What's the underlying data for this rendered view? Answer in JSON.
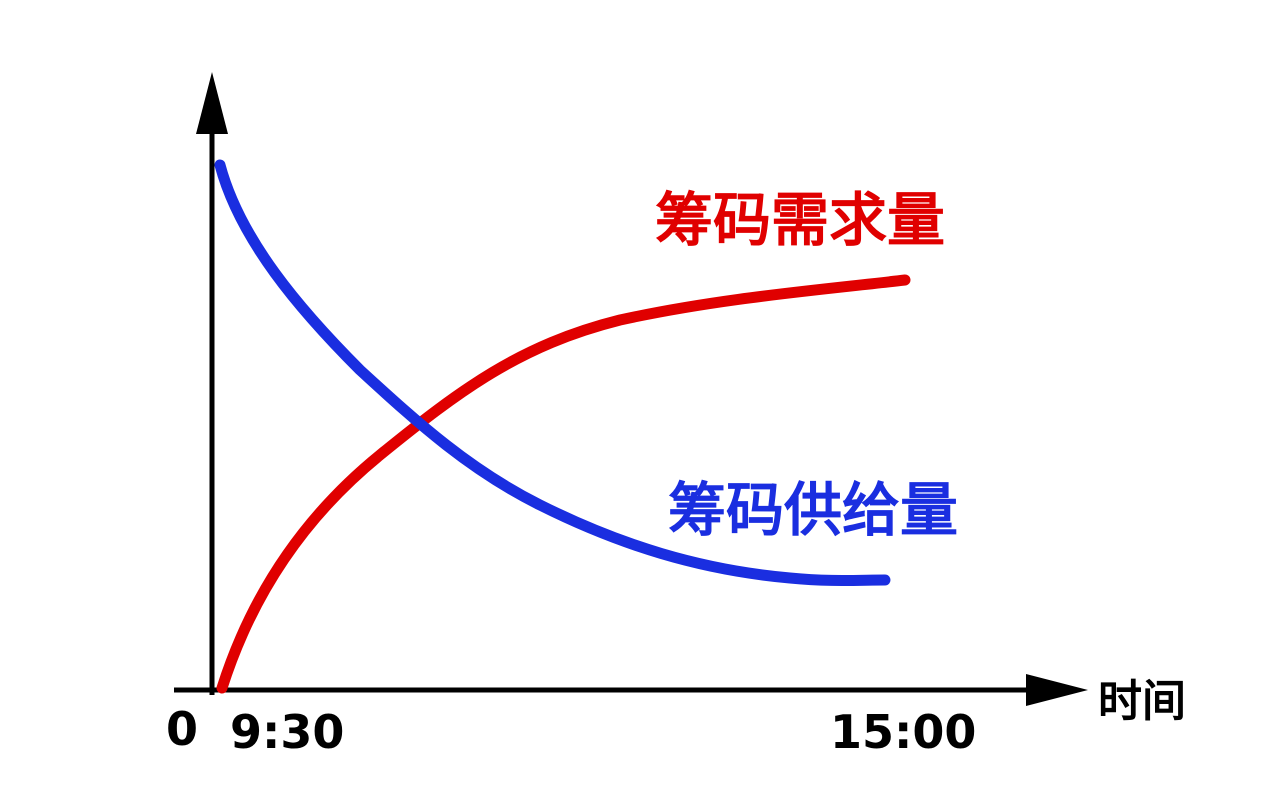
{
  "diagram": {
    "demand_label": "筹码需求量",
    "supply_label": "筹码供给量",
    "x_axis_label": "时间",
    "origin_label": "0",
    "start_time": "9:30",
    "end_time": "15:00"
  }
}
